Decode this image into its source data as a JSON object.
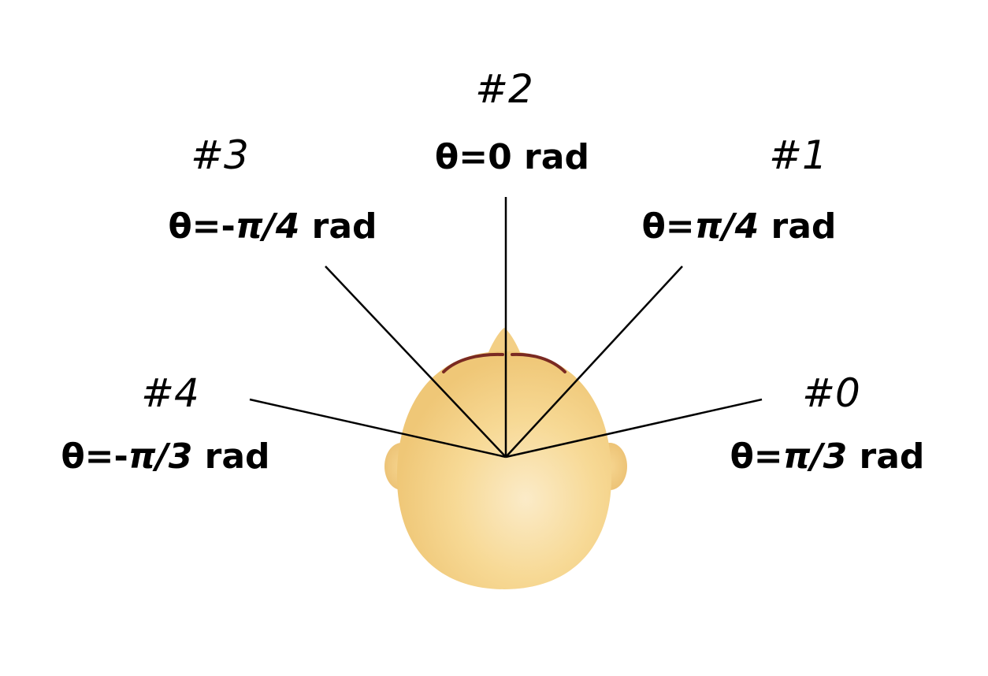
{
  "microphones": [
    {
      "index_label": "#0",
      "angle_prefix": "θ=",
      "angle_ital": "π/3",
      "angle_suffix": " rad"
    },
    {
      "index_label": "#1",
      "angle_prefix": "θ=",
      "angle_ital": "π/4",
      "angle_suffix": " rad"
    },
    {
      "index_label": "#2",
      "angle_prefix": "θ=0 rad",
      "angle_ital": "",
      "angle_suffix": ""
    },
    {
      "index_label": "#3",
      "angle_prefix": "θ=-",
      "angle_ital": "π/4",
      "angle_suffix": " rad"
    },
    {
      "index_label": "#4",
      "angle_prefix": "θ=-",
      "angle_ital": "π/3",
      "angle_suffix": " rad"
    }
  ],
  "colors": {
    "skin_light": "#fbe9c2",
    "skin_mid": "#f7d892",
    "skin_dark": "#eec675",
    "hair": "#7a2a22",
    "line": "#000000",
    "text": "#000000",
    "background": "#ffffff"
  }
}
